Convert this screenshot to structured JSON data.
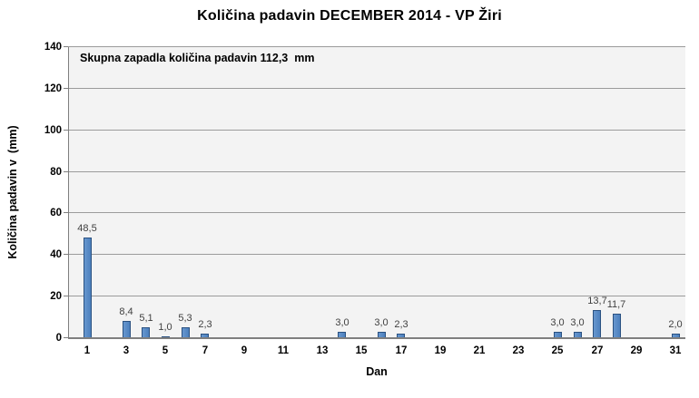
{
  "chart_data": {
    "type": "bar",
    "title": "Količina padavin DECEMBER 2014 - VP Žiri",
    "xlabel": "Dan",
    "ylabel": "Količina padavin v  (mm)",
    "annotation": "Skupna zapadla količina padavin 112,3  mm",
    "ylim": [
      0,
      140
    ],
    "y_tick_step": 20,
    "y_tick_labels": [
      "0",
      "20",
      "40",
      "60",
      "80",
      "100",
      "120",
      "140"
    ],
    "days_in_month": 31,
    "x_tick_days": [
      1,
      3,
      5,
      7,
      9,
      11,
      13,
      15,
      17,
      19,
      21,
      23,
      25,
      27,
      29,
      31
    ],
    "grid": true,
    "legend_position": "none",
    "points": [
      {
        "day": 1,
        "value": 48.5,
        "label": "48,5"
      },
      {
        "day": 3,
        "value": 8.4,
        "label": "8,4"
      },
      {
        "day": 4,
        "value": 5.1,
        "label": "5,1"
      },
      {
        "day": 5,
        "value": 1.0,
        "label": "1,0"
      },
      {
        "day": 6,
        "value": 5.3,
        "label": "5,3"
      },
      {
        "day": 7,
        "value": 2.3,
        "label": "2,3"
      },
      {
        "day": 14,
        "value": 3.0,
        "label": "3,0"
      },
      {
        "day": 16,
        "value": 3.0,
        "label": "3,0"
      },
      {
        "day": 17,
        "value": 2.3,
        "label": "2,3"
      },
      {
        "day": 25,
        "value": 3.0,
        "label": "3,0"
      },
      {
        "day": 26,
        "value": 3.0,
        "label": "3,0"
      },
      {
        "day": 27,
        "value": 13.7,
        "label": "13,7"
      },
      {
        "day": 28,
        "value": 11.7,
        "label": "11,7"
      },
      {
        "day": 31,
        "value": 2.0,
        "label": "2,0"
      }
    ],
    "colors": {
      "bar_fill": "#4d80bd",
      "bar_fill_light": "#6797cf",
      "bar_border": "#2a5181",
      "plot_bg": "#f3f3f3",
      "gridline": "#9b9b9b",
      "axis_line": "#7f7f7f",
      "text": "#000000",
      "data_label": "#3f3f3f"
    }
  }
}
